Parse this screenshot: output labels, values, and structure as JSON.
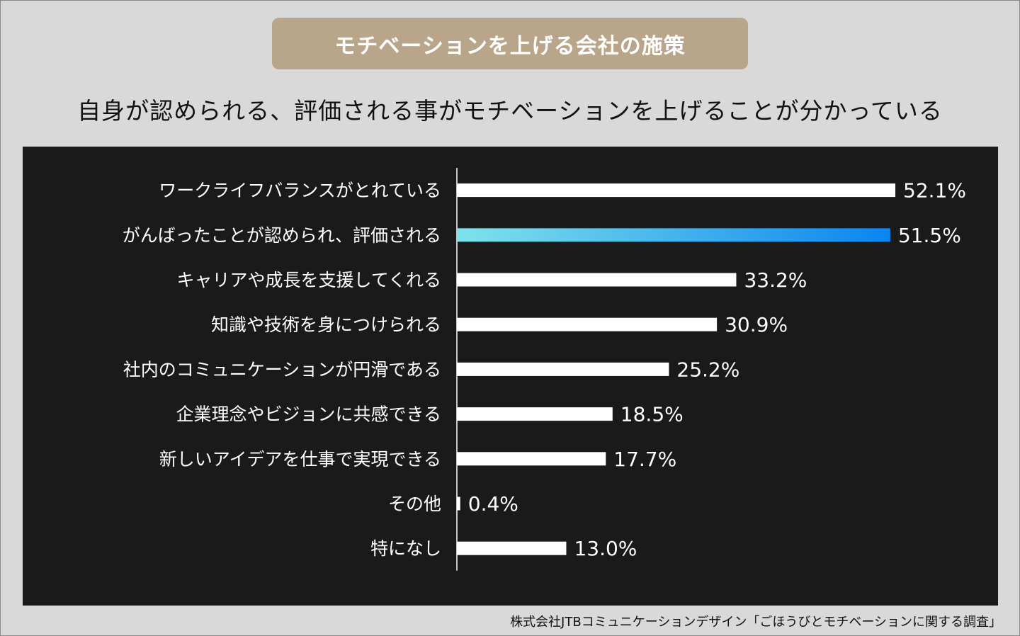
{
  "header": {
    "title": "モチベーションを上げる会社の施策",
    "subtitle": "自身が認められる、評価される事がモチベーションを上げることが分かっている"
  },
  "source": "株式会社JTBコミュニケーションデザイン「ごほうびとモチベーションに関する調査」",
  "colors": {
    "badge": "#b9a68a",
    "panel": "#1b1a1b",
    "bar": "#ffffff",
    "highlight_start": "#7fe3ea",
    "highlight_end": "#0a85f0"
  },
  "chart_data": {
    "type": "bar",
    "orientation": "horizontal",
    "categories": [
      "ワークライフバランスがとれている",
      "がんばったことが認められ、評価される",
      "キャリアや成長を支援してくれる",
      "知識や技術を身につけられる",
      "社内のコミュニケーションが円滑である",
      "企業理念やビジョンに共感できる",
      "新しいアイデアを仕事で実現できる",
      "その他",
      "特になし"
    ],
    "values": [
      52.1,
      51.5,
      33.2,
      30.9,
      25.2,
      18.5,
      17.7,
      0.4,
      13.0
    ],
    "value_labels": [
      "52.1%",
      "51.5%",
      "33.2%",
      "30.9%",
      "25.2%",
      "18.5%",
      "17.7%",
      "0.4%",
      "13.0%"
    ],
    "highlighted_index": 1,
    "unit": "%"
  }
}
